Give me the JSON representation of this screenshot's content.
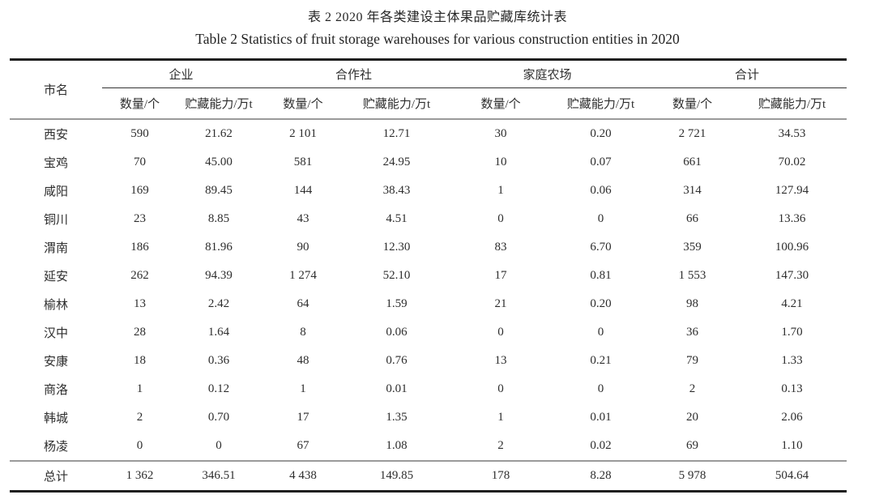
{
  "caption": {
    "zh": "表 2 2020 年各类建设主体果品贮藏库统计表",
    "en": "Table 2 Statistics of fruit storage warehouses for various construction entities in 2020"
  },
  "table": {
    "city_header": "市名",
    "groups": [
      "企业",
      "合作社",
      "家庭农场",
      "合计"
    ],
    "sub_headers": {
      "count": "数量/个",
      "capacity": "贮藏能力/万t"
    },
    "rows": [
      {
        "city": "西安",
        "values": [
          "590",
          "21.62",
          "2 101",
          "12.71",
          "30",
          "0.20",
          "2 721",
          "34.53"
        ]
      },
      {
        "city": "宝鸡",
        "values": [
          "70",
          "45.00",
          "581",
          "24.95",
          "10",
          "0.07",
          "661",
          "70.02"
        ]
      },
      {
        "city": "咸阳",
        "values": [
          "169",
          "89.45",
          "144",
          "38.43",
          "1",
          "0.06",
          "314",
          "127.94"
        ]
      },
      {
        "city": "铜川",
        "values": [
          "23",
          "8.85",
          "43",
          "4.51",
          "0",
          "0",
          "66",
          "13.36"
        ]
      },
      {
        "city": "渭南",
        "values": [
          "186",
          "81.96",
          "90",
          "12.30",
          "83",
          "6.70",
          "359",
          "100.96"
        ]
      },
      {
        "city": "延安",
        "values": [
          "262",
          "94.39",
          "1 274",
          "52.10",
          "17",
          "0.81",
          "1 553",
          "147.30"
        ]
      },
      {
        "city": "榆林",
        "values": [
          "13",
          "2.42",
          "64",
          "1.59",
          "21",
          "0.20",
          "98",
          "4.21"
        ]
      },
      {
        "city": "汉中",
        "values": [
          "28",
          "1.64",
          "8",
          "0.06",
          "0",
          "0",
          "36",
          "1.70"
        ]
      },
      {
        "city": "安康",
        "values": [
          "18",
          "0.36",
          "48",
          "0.76",
          "13",
          "0.21",
          "79",
          "1.33"
        ]
      },
      {
        "city": "商洛",
        "values": [
          "1",
          "0.12",
          "1",
          "0.01",
          "0",
          "0",
          "2",
          "0.13"
        ]
      },
      {
        "city": "韩城",
        "values": [
          "2",
          "0.70",
          "17",
          "1.35",
          "1",
          "0.01",
          "20",
          "2.06"
        ]
      },
      {
        "city": "杨凌",
        "values": [
          "0",
          "0",
          "67",
          "1.08",
          "2",
          "0.02",
          "69",
          "1.10"
        ]
      }
    ],
    "total": {
      "city": "总计",
      "values": [
        "1 362",
        "346.51",
        "4 438",
        "149.85",
        "178",
        "8.28",
        "5 978",
        "504.64"
      ]
    }
  },
  "colors": {
    "text": "#2d2d2d",
    "rule_heavy": "#1f1f1f",
    "rule_light": "#9a9a9a",
    "rule_spanner": "#333333"
  }
}
